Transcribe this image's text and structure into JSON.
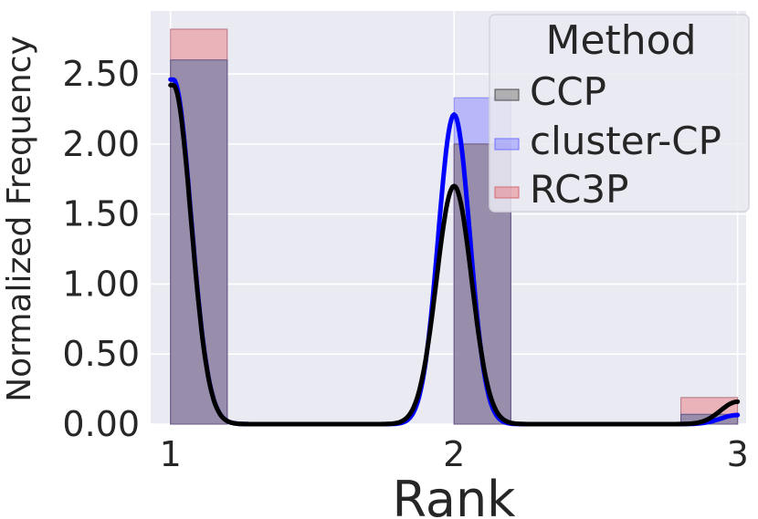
{
  "chart_data": {
    "type": "bar",
    "xlabel": "Rank",
    "ylabel": "Normalized Frequency",
    "xlim": [
      0.93,
      3.03
    ],
    "ylim": [
      0,
      2.95
    ],
    "grid": true,
    "x_ticks": [
      {
        "value": 1,
        "label": "1"
      },
      {
        "value": 2,
        "label": "2"
      },
      {
        "value": 3,
        "label": "3"
      }
    ],
    "y_ticks": [
      {
        "value": 0.0,
        "label": "0.00"
      },
      {
        "value": 0.5,
        "label": "0.50"
      },
      {
        "value": 1.0,
        "label": "1.00"
      },
      {
        "value": 1.5,
        "label": "1.50"
      },
      {
        "value": 2.0,
        "label": "2.00"
      },
      {
        "value": 2.5,
        "label": "2.50"
      }
    ],
    "bins": [
      [
        1.0,
        1.2
      ],
      [
        2.0,
        2.2
      ],
      [
        2.8,
        3.0
      ]
    ],
    "legend": {
      "title": "Method",
      "position": "upper right"
    },
    "series": [
      {
        "name": "CCP",
        "color": "#7f7f7f",
        "values": [
          2.6,
          2.0,
          0.07
        ],
        "kde": {
          "peaks": [
            2.42,
            1.7,
            0.16
          ],
          "widths": [
            0.062,
            0.062,
            0.06
          ]
        },
        "kde_color": "#000000"
      },
      {
        "name": "cluster-CP",
        "color": "#8c8cff",
        "values": [
          2.6,
          2.33,
          0.07
        ],
        "kde": {
          "peaks": [
            2.46,
            2.21,
            0.065
          ],
          "widths": [
            0.062,
            0.056,
            0.06
          ]
        },
        "kde_color": "#0000ff"
      },
      {
        "name": "RC3P",
        "color": "#e8858b",
        "values": [
          2.82,
          2.0,
          0.19
        ],
        "kde": null,
        "kde_color": null
      }
    ]
  }
}
